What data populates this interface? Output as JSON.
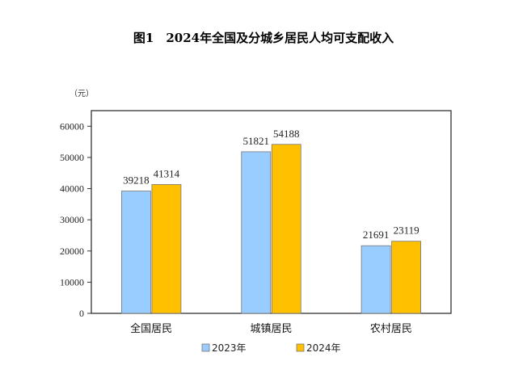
{
  "chart_data": {
    "type": "bar",
    "title": "图1　2024年全国及分城乡居民人均可支配收入",
    "unit": "（元）",
    "categories": [
      "全国居民",
      "城镇居民",
      "农村居民"
    ],
    "series": [
      {
        "name": "2023年",
        "values": [
          39218,
          51821,
          21691
        ],
        "color": "#99CCFF"
      },
      {
        "name": "2024年",
        "values": [
          41314,
          54188,
          23119
        ],
        "color": "#FFC000"
      }
    ],
    "yticks": [
      0,
      10000,
      20000,
      30000,
      40000,
      50000,
      60000
    ],
    "ylim": [
      0,
      65000
    ],
    "grid": false,
    "legend": "bottom"
  }
}
